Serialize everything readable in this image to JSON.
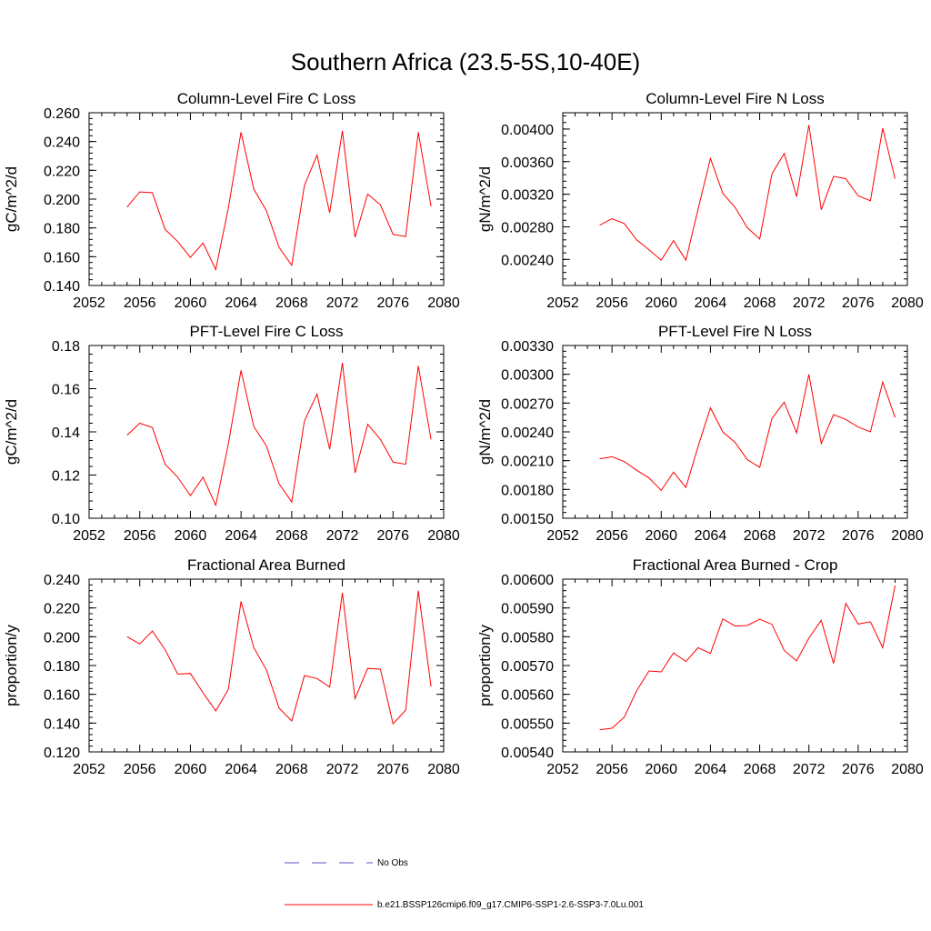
{
  "figure": {
    "title": "Southern Africa (23.5-5S,10-40E)"
  },
  "legend": {
    "entries": [
      {
        "label": "No Obs",
        "style": "dashed",
        "color": "#5a5ac8"
      },
      {
        "label": "b.e21.BSSP126cmip6.f09_g17.CMIP6-SSP1-2.6-SSP3-7.0Lu.001",
        "style": "solid",
        "color": "#ff0000"
      }
    ]
  },
  "chart_data": [
    {
      "type": "line",
      "title": "Column-Level Fire C Loss",
      "ylabel": "gC/m^2/d",
      "xlim": [
        2052,
        2080
      ],
      "xticks": [
        2052,
        2056,
        2060,
        2064,
        2068,
        2072,
        2076,
        2080
      ],
      "ylim": [
        0.14,
        0.26
      ],
      "yticks": [
        0.14,
        0.16,
        0.18,
        0.2,
        0.22,
        0.24,
        0.26
      ],
      "ytick_labels": [
        "0.140",
        "0.160",
        "0.180",
        "0.200",
        "0.220",
        "0.240",
        "0.260"
      ],
      "x": [
        2055,
        2056,
        2057,
        2058,
        2059,
        2060,
        2061,
        2062,
        2063,
        2064,
        2065,
        2066,
        2067,
        2068,
        2069,
        2070,
        2071,
        2072,
        2073,
        2074,
        2075,
        2076,
        2077,
        2078,
        2079
      ],
      "series": [
        {
          "color": "#ff0000",
          "values": [
            0.1945,
            0.205,
            0.2045,
            0.179,
            0.1705,
            0.1595,
            0.1695,
            0.151,
            0.194,
            0.2465,
            0.207,
            0.192,
            0.1665,
            0.154,
            0.2095,
            0.2305,
            0.1905,
            0.2475,
            0.1735,
            0.2035,
            0.196,
            0.1755,
            0.174,
            0.2465,
            0.195
          ]
        }
      ]
    },
    {
      "type": "line",
      "title": "Column-Level Fire N Loss",
      "ylabel": "gN/m^2/d",
      "xlim": [
        2052,
        2080
      ],
      "xticks": [
        2052,
        2056,
        2060,
        2064,
        2068,
        2072,
        2076,
        2080
      ],
      "ylim": [
        0.00208,
        0.0042
      ],
      "yticks": [
        0.0024,
        0.0028,
        0.0032,
        0.0036,
        0.004
      ],
      "ytick_labels": [
        "0.00240",
        "0.00280",
        "0.00320",
        "0.00360",
        "0.00400"
      ],
      "x": [
        2055,
        2056,
        2057,
        2058,
        2059,
        2060,
        2061,
        2062,
        2063,
        2064,
        2065,
        2066,
        2067,
        2068,
        2069,
        2070,
        2071,
        2072,
        2073,
        2074,
        2075,
        2076,
        2077,
        2078,
        2079
      ],
      "series": [
        {
          "color": "#ff0000",
          "values": [
            0.00282,
            0.0029,
            0.00284,
            0.00264,
            0.00252,
            0.00239,
            0.00263,
            0.00239,
            0.00302,
            0.00364,
            0.00321,
            0.00304,
            0.00279,
            0.00265,
            0.00345,
            0.0037,
            0.00317,
            0.00405,
            0.00301,
            0.00342,
            0.00339,
            0.00318,
            0.00312,
            0.00401,
            0.00339
          ]
        }
      ]
    },
    {
      "type": "line",
      "title": "PFT-Level Fire C Loss",
      "ylabel": "gC/m^2/d",
      "xlim": [
        2052,
        2080
      ],
      "xticks": [
        2052,
        2056,
        2060,
        2064,
        2068,
        2072,
        2076,
        2080
      ],
      "ylim": [
        0.1,
        0.18
      ],
      "yticks": [
        0.1,
        0.12,
        0.14,
        0.16,
        0.18
      ],
      "ytick_labels": [
        "0.10",
        "0.12",
        "0.14",
        "0.16",
        "0.18"
      ],
      "x": [
        2055,
        2056,
        2057,
        2058,
        2059,
        2060,
        2061,
        2062,
        2063,
        2064,
        2065,
        2066,
        2067,
        2068,
        2069,
        2070,
        2071,
        2072,
        2073,
        2074,
        2075,
        2076,
        2077,
        2078,
        2079
      ],
      "series": [
        {
          "color": "#ff0000",
          "values": [
            0.1385,
            0.144,
            0.142,
            0.125,
            0.119,
            0.1105,
            0.119,
            0.106,
            0.1345,
            0.1685,
            0.1425,
            0.1335,
            0.116,
            0.1075,
            0.145,
            0.1575,
            0.132,
            0.172,
            0.121,
            0.1435,
            0.1365,
            0.126,
            0.125,
            0.1705,
            0.1365
          ]
        }
      ]
    },
    {
      "type": "line",
      "title": "PFT-Level Fire N Loss",
      "ylabel": "gN/m^2/d",
      "xlim": [
        2052,
        2080
      ],
      "xticks": [
        2052,
        2056,
        2060,
        2064,
        2068,
        2072,
        2076,
        2080
      ],
      "ylim": [
        0.0015,
        0.0033
      ],
      "yticks": [
        0.0015,
        0.0018,
        0.0021,
        0.0024,
        0.0027,
        0.003,
        0.0033
      ],
      "ytick_labels": [
        "0.00150",
        "0.00180",
        "0.00210",
        "0.00240",
        "0.00270",
        "0.00300",
        "0.00330"
      ],
      "x": [
        2055,
        2056,
        2057,
        2058,
        2059,
        2060,
        2061,
        2062,
        2063,
        2064,
        2065,
        2066,
        2067,
        2068,
        2069,
        2070,
        2071,
        2072,
        2073,
        2074,
        2075,
        2076,
        2077,
        2078,
        2079
      ],
      "series": [
        {
          "color": "#ff0000",
          "values": [
            0.00212,
            0.00214,
            0.00209,
            0.002,
            0.00192,
            0.00179,
            0.00198,
            0.00182,
            0.00225,
            0.00265,
            0.0024,
            0.00229,
            0.00211,
            0.00203,
            0.00254,
            0.00271,
            0.00239,
            0.003,
            0.00228,
            0.00258,
            0.00253,
            0.00245,
            0.0024,
            0.00292,
            0.00255
          ]
        }
      ]
    },
    {
      "type": "line",
      "title": "Fractional Area Burned",
      "ylabel": "proportion/y",
      "xlim": [
        2052,
        2080
      ],
      "xticks": [
        2052,
        2056,
        2060,
        2064,
        2068,
        2072,
        2076,
        2080
      ],
      "ylim": [
        0.12,
        0.24
      ],
      "yticks": [
        0.12,
        0.14,
        0.16,
        0.18,
        0.2,
        0.22,
        0.24
      ],
      "ytick_labels": [
        "0.120",
        "0.140",
        "0.160",
        "0.180",
        "0.200",
        "0.220",
        "0.240"
      ],
      "x": [
        2055,
        2056,
        2057,
        2058,
        2059,
        2060,
        2061,
        2062,
        2063,
        2064,
        2065,
        2066,
        2067,
        2068,
        2069,
        2070,
        2071,
        2072,
        2073,
        2074,
        2075,
        2076,
        2077,
        2078,
        2079
      ],
      "series": [
        {
          "color": "#ff0000",
          "values": [
            0.2,
            0.195,
            0.204,
            0.191,
            0.174,
            0.1745,
            0.161,
            0.1485,
            0.1635,
            0.2245,
            0.1925,
            0.177,
            0.1505,
            0.1415,
            0.173,
            0.171,
            0.165,
            0.2305,
            0.157,
            0.178,
            0.1775,
            0.1395,
            0.149,
            0.232,
            0.1655
          ]
        }
      ]
    },
    {
      "type": "line",
      "title": "Fractional Area Burned - Crop",
      "ylabel": "proportion/y",
      "xlim": [
        2052,
        2080
      ],
      "xticks": [
        2052,
        2056,
        2060,
        2064,
        2068,
        2072,
        2076,
        2080
      ],
      "ylim": [
        0.0054,
        0.006
      ],
      "yticks": [
        0.0054,
        0.0055,
        0.0056,
        0.0057,
        0.0058,
        0.0059,
        0.006
      ],
      "ytick_labels": [
        "0.00540",
        "0.00550",
        "0.00560",
        "0.00570",
        "0.00580",
        "0.00590",
        "0.00600"
      ],
      "x": [
        2055,
        2056,
        2057,
        2058,
        2059,
        2060,
        2061,
        2062,
        2063,
        2064,
        2065,
        2066,
        2067,
        2068,
        2069,
        2070,
        2071,
        2072,
        2073,
        2074,
        2075,
        2076,
        2077,
        2078,
        2079
      ],
      "series": [
        {
          "color": "#ff0000",
          "values": [
            0.005477,
            0.005482,
            0.005521,
            0.005612,
            0.005681,
            0.005678,
            0.005744,
            0.005714,
            0.005762,
            0.005742,
            0.005862,
            0.005837,
            0.005839,
            0.005861,
            0.005843,
            0.005752,
            0.005716,
            0.005795,
            0.005857,
            0.005707,
            0.005916,
            0.005844,
            0.005852,
            0.005762,
            0.005978
          ]
        }
      ]
    }
  ]
}
